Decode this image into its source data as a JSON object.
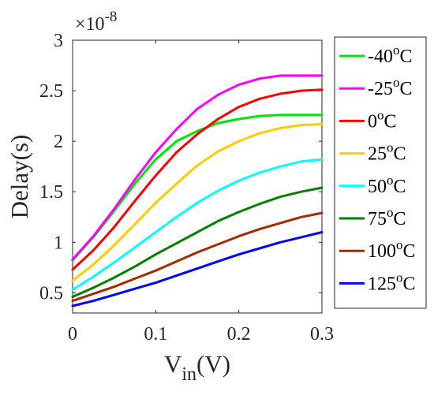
{
  "chart_data": {
    "type": "line",
    "xlabel": "V",
    "xlabel_sub": "in",
    "xlabel_unit": "(V)",
    "ylabel": "Delay(s)",
    "scale_base": "×10",
    "scale_exponent": "-8",
    "xlim": [
      0,
      0.3
    ],
    "ylim": [
      0.3,
      3
    ],
    "xticks": [
      0,
      0.1,
      0.2,
      0.3
    ],
    "xtick_labels": [
      "0",
      "0.1",
      "0.2",
      "0.3"
    ],
    "yticks": [
      0.5,
      1,
      1.5,
      2,
      2.5,
      3
    ],
    "ytick_labels": [
      "0.5",
      "1",
      "1.5",
      "2",
      "2.5",
      "3"
    ],
    "grid": false,
    "legend_position": "right",
    "x": [
      0,
      0.025,
      0.05,
      0.075,
      0.1,
      0.125,
      0.15,
      0.175,
      0.2,
      0.225,
      0.25,
      0.275,
      0.3
    ],
    "series": [
      {
        "name": "-40",
        "unit": "C",
        "color": "#00e600",
        "values": [
          0.82,
          1.05,
          1.31,
          1.58,
          1.82,
          2.0,
          2.1,
          2.18,
          2.22,
          2.25,
          2.26,
          2.26,
          2.26
        ]
      },
      {
        "name": "-25",
        "unit": "C",
        "color": "#ff00ff",
        "values": [
          0.83,
          1.06,
          1.33,
          1.62,
          1.89,
          2.12,
          2.32,
          2.46,
          2.56,
          2.62,
          2.65,
          2.65,
          2.65
        ]
      },
      {
        "name": "0",
        "unit": "C",
        "color": "#ff0000",
        "values": [
          0.73,
          0.92,
          1.15,
          1.41,
          1.66,
          1.89,
          2.07,
          2.22,
          2.34,
          2.42,
          2.47,
          2.5,
          2.51
        ]
      },
      {
        "name": "25",
        "unit": "C",
        "color": "#ffcc00",
        "values": [
          0.62,
          0.78,
          0.97,
          1.18,
          1.39,
          1.58,
          1.76,
          1.9,
          2.0,
          2.08,
          2.13,
          2.16,
          2.17
        ]
      },
      {
        "name": "50",
        "unit": "C",
        "color": "#00ffff",
        "values": [
          0.53,
          0.66,
          0.8,
          0.95,
          1.1,
          1.25,
          1.39,
          1.51,
          1.61,
          1.69,
          1.75,
          1.8,
          1.82
        ]
      },
      {
        "name": "75",
        "unit": "C",
        "color": "#008000",
        "values": [
          0.46,
          0.55,
          0.65,
          0.76,
          0.88,
          0.99,
          1.1,
          1.21,
          1.3,
          1.38,
          1.45,
          1.5,
          1.54
        ]
      },
      {
        "name": "100",
        "unit": "C",
        "color": "#a52a00",
        "values": [
          0.42,
          0.49,
          0.56,
          0.64,
          0.72,
          0.81,
          0.9,
          0.98,
          1.06,
          1.13,
          1.19,
          1.25,
          1.29
        ]
      },
      {
        "name": "125",
        "unit": "C",
        "color": "#0000ff",
        "values": [
          0.37,
          0.42,
          0.48,
          0.54,
          0.6,
          0.67,
          0.74,
          0.81,
          0.88,
          0.94,
          1.0,
          1.05,
          1.1
        ]
      }
    ]
  }
}
